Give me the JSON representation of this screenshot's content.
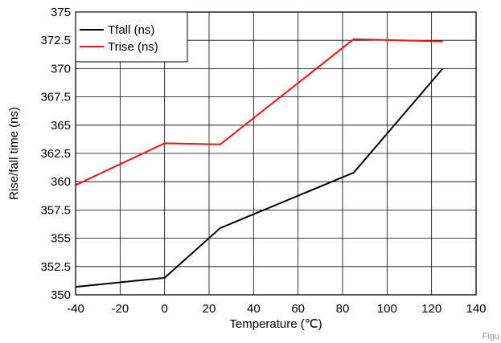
{
  "chart_data": {
    "type": "line",
    "title": "",
    "xlabel": "Temperature (℃)",
    "ylabel": "Rise/fall time (ns)",
    "xlim": [
      -40,
      140
    ],
    "ylim": [
      350,
      375
    ],
    "x_ticks": [
      -40,
      -20,
      0,
      20,
      40,
      60,
      80,
      100,
      120,
      140
    ],
    "y_ticks": [
      350,
      352.5,
      355,
      357.5,
      360,
      362.5,
      365,
      367.5,
      370,
      372.5,
      375
    ],
    "grid": true,
    "legend_position": "top-left",
    "series": [
      {
        "name": "Tfall (ns)",
        "color": "#000000",
        "x": [
          -40,
          0,
          25,
          85,
          125
        ],
        "y": [
          350.7,
          351.5,
          355.9,
          360.8,
          370.0
        ]
      },
      {
        "name": "Trise (ns)",
        "color": "#e8141c",
        "x": [
          -40,
          0,
          25,
          85,
          125
        ],
        "y": [
          359.7,
          363.4,
          363.3,
          372.6,
          372.4
        ]
      }
    ]
  },
  "footer": {
    "label": "Figu"
  }
}
